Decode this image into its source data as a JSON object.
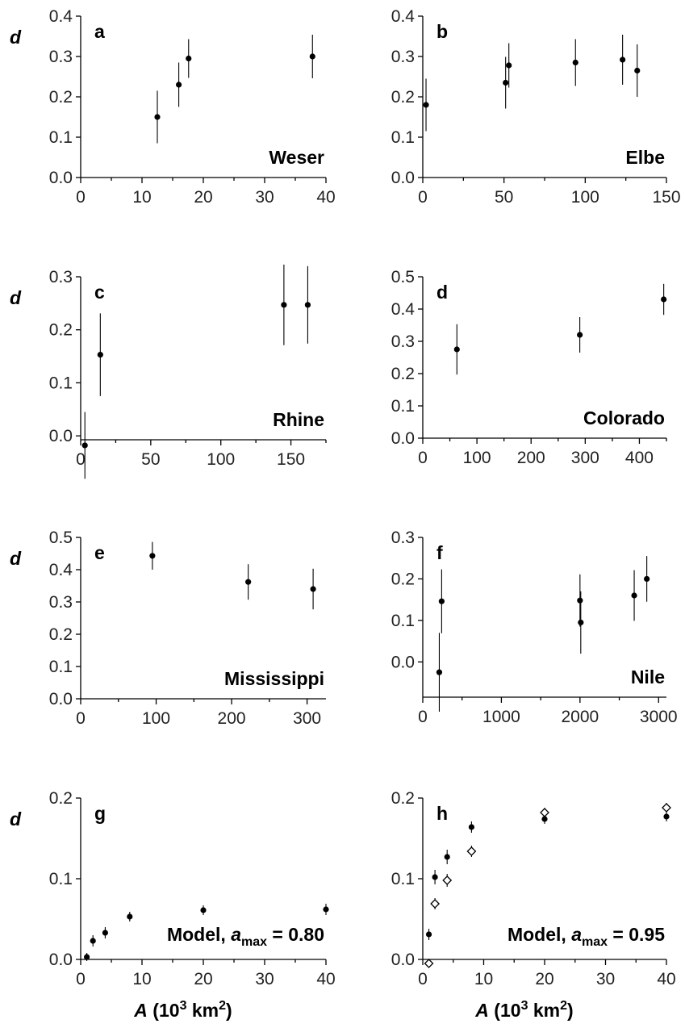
{
  "chart_data": [
    {
      "type": "scatter",
      "panel": "a",
      "annotation": "Weser",
      "ylabel": "d",
      "xlabel": "",
      "xlim": [
        0,
        40
      ],
      "ylim": [
        0,
        0.4
      ],
      "xticks": [
        "0",
        "10",
        "20",
        "30",
        "40"
      ],
      "yticks": [
        "0.0",
        "0.1",
        "0.2",
        "0.3",
        "0.4"
      ],
      "series": [
        {
          "marker": "filled-circle",
          "points": [
            {
              "x": 12.5,
              "y": 0.15,
              "err": 0.065
            },
            {
              "x": 16.0,
              "y": 0.23,
              "err": 0.055
            },
            {
              "x": 17.6,
              "y": 0.295,
              "err": 0.048
            },
            {
              "x": 37.8,
              "y": 0.3,
              "err": 0.054
            }
          ]
        }
      ]
    },
    {
      "type": "scatter",
      "panel": "b",
      "annotation": "Elbe",
      "ylabel": "",
      "xlabel": "",
      "xlim": [
        0,
        150
      ],
      "ylim": [
        0,
        0.4
      ],
      "xticks": [
        "0",
        "50",
        "100",
        "150"
      ],
      "yticks": [
        "0.0",
        "0.1",
        "0.2",
        "0.3",
        "0.4"
      ],
      "series": [
        {
          "marker": "filled-circle",
          "points": [
            {
              "x": 2,
              "y": 0.18,
              "err": 0.065
            },
            {
              "x": 51,
              "y": 0.235,
              "err": 0.064
            },
            {
              "x": 53,
              "y": 0.278,
              "err": 0.055
            },
            {
              "x": 94,
              "y": 0.285,
              "err": 0.058
            },
            {
              "x": 123,
              "y": 0.292,
              "err": 0.062
            },
            {
              "x": 132,
              "y": 0.265,
              "err": 0.065
            }
          ]
        }
      ]
    },
    {
      "type": "scatter",
      "panel": "c",
      "annotation": "Rhine",
      "ylabel": "d",
      "xlabel": "",
      "xlim": [
        0,
        175
      ],
      "ylim": [
        -0.05,
        0.3
      ],
      "xticks": [
        "0",
        "50",
        "100",
        "150"
      ],
      "yticks": [
        "0.0",
        "0.1",
        "0.2",
        "0.3"
      ],
      "series": [
        {
          "marker": "filled-circle",
          "points": [
            {
              "x": 3,
              "y": -0.018,
              "err": 0.063
            },
            {
              "x": 14,
              "y": 0.153,
              "err": 0.078
            },
            {
              "x": 145,
              "y": 0.247,
              "err": 0.076
            },
            {
              "x": 162,
              "y": 0.247,
              "err": 0.073
            }
          ]
        }
      ]
    },
    {
      "type": "scatter",
      "panel": "d",
      "annotation": "Colorado",
      "ylabel": "",
      "xlabel": "",
      "xlim": [
        0,
        450
      ],
      "ylim": [
        0,
        0.5
      ],
      "xticks": [
        "0",
        "100",
        "200",
        "300",
        "400"
      ],
      "yticks": [
        "0.0",
        "0.1",
        "0.2",
        "0.3",
        "0.4",
        "0.5"
      ],
      "series": [
        {
          "marker": "filled-circle",
          "points": [
            {
              "x": 63,
              "y": 0.275,
              "err": 0.078
            },
            {
              "x": 290,
              "y": 0.32,
              "err": 0.055
            },
            {
              "x": 445,
              "y": 0.43,
              "err": 0.048
            }
          ]
        }
      ]
    },
    {
      "type": "scatter",
      "panel": "e",
      "annotation": "Mississippi",
      "ylabel": "d",
      "xlabel": "",
      "xlim": [
        0,
        325
      ],
      "ylim": [
        0,
        0.5
      ],
      "xticks": [
        "0",
        "100",
        "200",
        "300"
      ],
      "yticks": [
        "0.0",
        "0.1",
        "0.2",
        "0.3",
        "0.4",
        "0.5"
      ],
      "series": [
        {
          "marker": "filled-circle",
          "points": [
            {
              "x": 95,
              "y": 0.443,
              "err": 0.043
            },
            {
              "x": 222,
              "y": 0.362,
              "err": 0.055
            },
            {
              "x": 308,
              "y": 0.34,
              "err": 0.063
            }
          ]
        }
      ]
    },
    {
      "type": "scatter",
      "panel": "f",
      "annotation": "Nile",
      "ylabel": "",
      "xlabel": "",
      "xlim": [
        0,
        3100
      ],
      "ylim": [
        -0.085,
        0.3
      ],
      "xticks": [
        "0",
        "1000",
        "2000",
        "3000"
      ],
      "yticks": [
        "0.0",
        "0.1",
        "0.2",
        "0.3"
      ],
      "series": [
        {
          "marker": "filled-circle",
          "points": [
            {
              "x": 210,
              "y": -0.025,
              "err": 0.095
            },
            {
              "x": 240,
              "y": 0.146,
              "err": 0.077
            },
            {
              "x": 2000,
              "y": 0.148,
              "err": 0.063
            },
            {
              "x": 2010,
              "y": 0.095,
              "err": 0.075
            },
            {
              "x": 2690,
              "y": 0.16,
              "err": 0.061
            },
            {
              "x": 2850,
              "y": 0.2,
              "err": 0.055
            }
          ]
        }
      ]
    },
    {
      "type": "scatter",
      "panel": "g",
      "annotation": "Model, a_max = 0.80",
      "ylabel": "d",
      "xlabel": "A (10^3 km^2)",
      "xlim": [
        0,
        40
      ],
      "ylim": [
        0,
        0.2
      ],
      "xticks": [
        "0",
        "10",
        "20",
        "30",
        "40"
      ],
      "yticks": [
        "0.0",
        "0.1",
        "0.2"
      ],
      "series": [
        {
          "marker": "filled-circle",
          "points": [
            {
              "x": 1,
              "y": 0.003,
              "err": 0.005
            },
            {
              "x": 2,
              "y": 0.023,
              "err": 0.007
            },
            {
              "x": 4,
              "y": 0.033,
              "err": 0.007
            },
            {
              "x": 8,
              "y": 0.053,
              "err": 0.006
            },
            {
              "x": 20,
              "y": 0.061,
              "err": 0.006
            },
            {
              "x": 40,
              "y": 0.062,
              "err": 0.007
            }
          ]
        }
      ]
    },
    {
      "type": "scatter",
      "panel": "h",
      "annotation": "Model, a_max = 0.95",
      "ylabel": "",
      "xlabel": "A (10^3 km^2)",
      "xlim": [
        0,
        40
      ],
      "ylim": [
        0,
        0.2
      ],
      "xticks": [
        "0",
        "10",
        "20",
        "30",
        "40"
      ],
      "yticks": [
        "0.0",
        "0.1",
        "0.2"
      ],
      "series": [
        {
          "marker": "filled-circle",
          "points": [
            {
              "x": 1,
              "y": 0.031,
              "err": 0.007
            },
            {
              "x": 2,
              "y": 0.102,
              "err": 0.009
            },
            {
              "x": 4,
              "y": 0.127,
              "err": 0.009
            },
            {
              "x": 8,
              "y": 0.164,
              "err": 0.007
            },
            {
              "x": 20,
              "y": 0.174,
              "err": 0.006
            },
            {
              "x": 40,
              "y": 0.177,
              "err": 0.006
            }
          ]
        },
        {
          "marker": "open-diamond",
          "points": [
            {
              "x": 1,
              "y": -0.005,
              "err": 0.004
            },
            {
              "x": 2,
              "y": 0.069,
              "err": 0.007
            },
            {
              "x": 4,
              "y": 0.098,
              "err": 0.008
            },
            {
              "x": 8,
              "y": 0.134,
              "err": 0.007
            },
            {
              "x": 20,
              "y": 0.182,
              "err": 0.006
            },
            {
              "x": 40,
              "y": 0.188,
              "err": 0.006
            }
          ]
        }
      ]
    }
  ]
}
